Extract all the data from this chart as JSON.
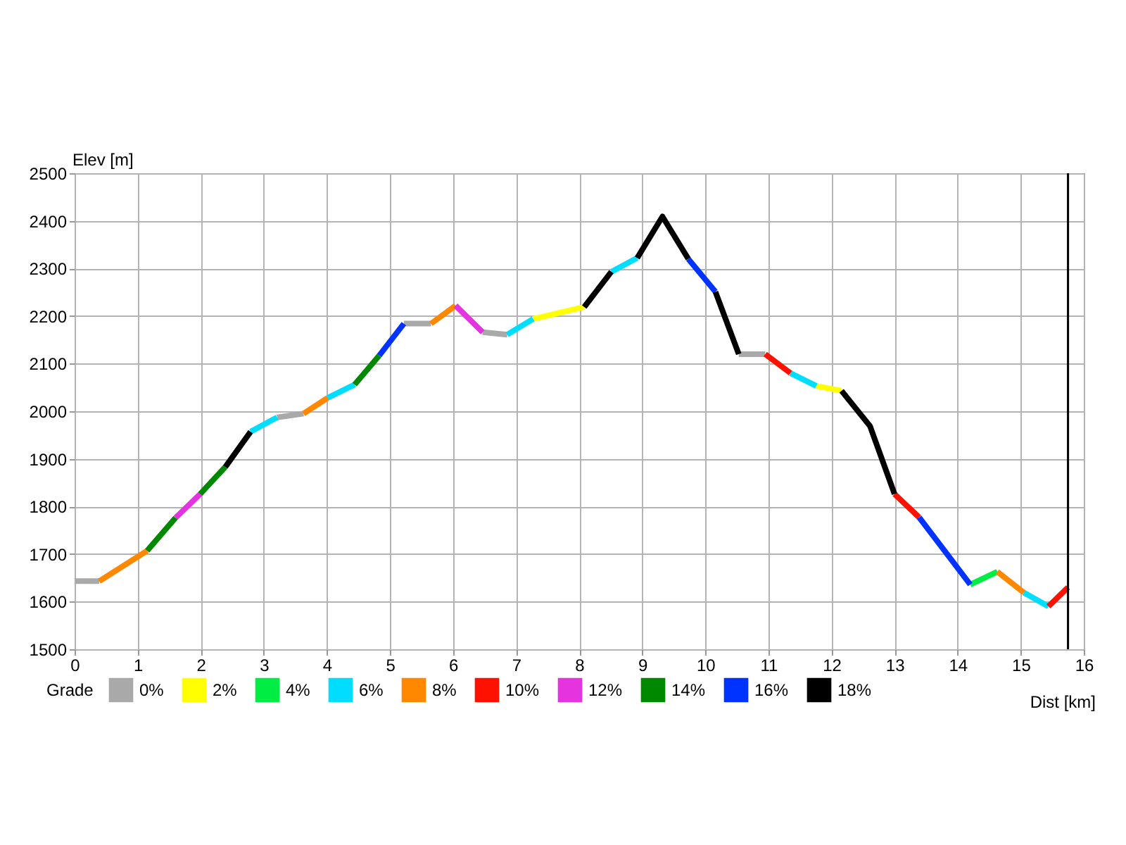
{
  "chart_data": {
    "type": "line",
    "xlabel": "Dist [km]",
    "ylabel": "Elev [m]",
    "legend_title": "Grade",
    "legend": "bottom",
    "grid": true,
    "marker": "none",
    "line_style": "solid",
    "xlim": [
      0,
      16
    ],
    "xticks": [
      0,
      1,
      2,
      3,
      4,
      5,
      6,
      7,
      8,
      9,
      10,
      11,
      12,
      13,
      14,
      15,
      16
    ],
    "ylim": [
      1500,
      2500
    ],
    "yticks": [
      1500,
      1600,
      1700,
      1800,
      1900,
      2000,
      2100,
      2200,
      2300,
      2400,
      2500
    ],
    "ref_lines": [
      {
        "axis": "x",
        "value": 15.75,
        "color": "#000000"
      }
    ],
    "series": [
      {
        "name": "0%",
        "color": "#a9a9a9",
        "x": [
          0,
          0.39,
          null,
          3.21,
          3.63,
          null,
          5.22,
          5.65,
          null,
          6.47,
          6.86,
          null,
          10.53,
          10.95
        ],
        "values": [
          1643,
          1643,
          null,
          1987,
          1995,
          null,
          2184,
          2184,
          null,
          2166,
          2161,
          null,
          2120,
          2120
        ]
      },
      {
        "name": "2%",
        "color": "#ffff00",
        "x": [
          7.27,
          8.08,
          null,
          11.76,
          12.16
        ],
        "values": [
          2194,
          2219,
          null,
          2053,
          2043
        ]
      },
      {
        "name": "4%",
        "color": "#00ee44",
        "x": [
          14.2,
          14.63
        ],
        "values": [
          1636,
          1663
        ]
      },
      {
        "name": "6%",
        "color": "#00ddff",
        "x": [
          2.79,
          3.21,
          null,
          4.01,
          4.44,
          null,
          6.86,
          7.27,
          null,
          8.51,
          8.92,
          null,
          11.35,
          11.76,
          null,
          15.05,
          15.44
        ],
        "values": [
          1957,
          1987,
          null,
          2028,
          2056,
          null,
          2161,
          2194,
          null,
          2293,
          2322,
          null,
          2080,
          2053,
          null,
          1619,
          1590
        ]
      },
      {
        "name": "8%",
        "color": "#ff8800",
        "x": [
          0.39,
          1.15,
          null,
          3.63,
          4.01,
          null,
          5.65,
          6.04,
          null,
          14.63,
          15.05
        ],
        "values": [
          1643,
          1707,
          null,
          1995,
          2028,
          null,
          2184,
          2222,
          null,
          1663,
          1619
        ]
      },
      {
        "name": "10%",
        "color": "#ff1100",
        "x": [
          10.95,
          11.35,
          null,
          13.0,
          13.39,
          null,
          15.44,
          15.75
        ],
        "values": [
          2120,
          2080,
          null,
          1826,
          1777,
          null,
          1590,
          1630
        ]
      },
      {
        "name": "12%",
        "color": "#e633e0",
        "x": [
          1.6,
          1.99,
          null,
          6.04,
          6.47
        ],
        "values": [
          1776,
          1826,
          null,
          2222,
          2166
        ]
      },
      {
        "name": "14%",
        "color": "#008800",
        "x": [
          1.15,
          1.6,
          null,
          1.99,
          2.39,
          null,
          4.44,
          4.83
        ],
        "values": [
          1707,
          1776,
          null,
          1826,
          1883,
          null,
          2056,
          2117
        ]
      },
      {
        "name": "16%",
        "color": "#0033ff",
        "x": [
          4.83,
          5.22,
          null,
          9.73,
          10.16,
          null,
          13.39,
          14.2
        ],
        "values": [
          2117,
          2184,
          null,
          2320,
          2251,
          null,
          1777,
          1636
        ]
      },
      {
        "name": "18%",
        "color": "#000000",
        "x": [
          2.39,
          2.79,
          null,
          8.08,
          8.51,
          null,
          8.92,
          9.32,
          9.73,
          null,
          10.16,
          10.53,
          null,
          12.16,
          12.61,
          13.0
        ],
        "values": [
          1883,
          1957,
          null,
          2219,
          2293,
          null,
          2322,
          2409,
          2320,
          null,
          2251,
          2120,
          null,
          2043,
          1969,
          1826
        ]
      }
    ]
  }
}
